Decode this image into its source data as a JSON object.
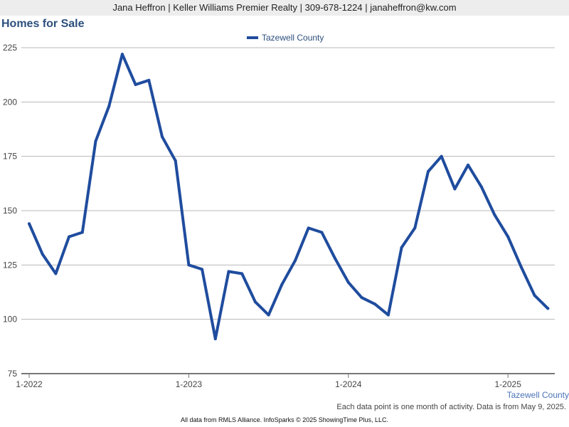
{
  "header": {
    "contact": "Jana Heffron | Keller Williams Premier Realty | 309-678-1224 | janaheffron@kw.com"
  },
  "chart_data": {
    "type": "line",
    "title": "Homes for Sale",
    "x": [
      "2022-01",
      "2022-02",
      "2022-03",
      "2022-04",
      "2022-05",
      "2022-06",
      "2022-07",
      "2022-08",
      "2022-09",
      "2022-10",
      "2022-11",
      "2022-12",
      "2023-01",
      "2023-02",
      "2023-03",
      "2023-04",
      "2023-05",
      "2023-06",
      "2023-07",
      "2023-08",
      "2023-09",
      "2023-10",
      "2023-11",
      "2023-12",
      "2024-01",
      "2024-02",
      "2024-03",
      "2024-04",
      "2024-05",
      "2024-06",
      "2024-07",
      "2024-08",
      "2024-09",
      "2024-10",
      "2024-11",
      "2024-12",
      "2025-01",
      "2025-02",
      "2025-03",
      "2025-04"
    ],
    "series": [
      {
        "name": "Tazewell County",
        "values": [
          144,
          130,
          121,
          138,
          140,
          182,
          198,
          222,
          208,
          210,
          184,
          173,
          125,
          123,
          91,
          122,
          121,
          108,
          102,
          116,
          127,
          142,
          140,
          128,
          117,
          110,
          107,
          102,
          133,
          142,
          168,
          175,
          160,
          171,
          161,
          148,
          138,
          124,
          111,
          105
        ]
      }
    ],
    "ylim": [
      75,
      225
    ],
    "yticks": [
      75,
      100,
      125,
      150,
      175,
      200,
      225
    ],
    "xtick_labels": [
      "1-2022",
      "1-2023",
      "1-2024",
      "1-2025"
    ],
    "xtick_index": [
      0,
      12,
      24,
      36
    ],
    "legend": "top-center",
    "grid": true,
    "colors": {
      "line": "#1f4c9e",
      "grid": "#b8b8b8",
      "axis": "#777777",
      "title": "#2c4f7c"
    }
  },
  "series_label": "Tazewell County",
  "note": "Each data point is one month of activity. Data is from May 9, 2025.",
  "footer": "All data from RMLS Alliance. InfoSparks © 2025 ShowingTime Plus, LLC."
}
